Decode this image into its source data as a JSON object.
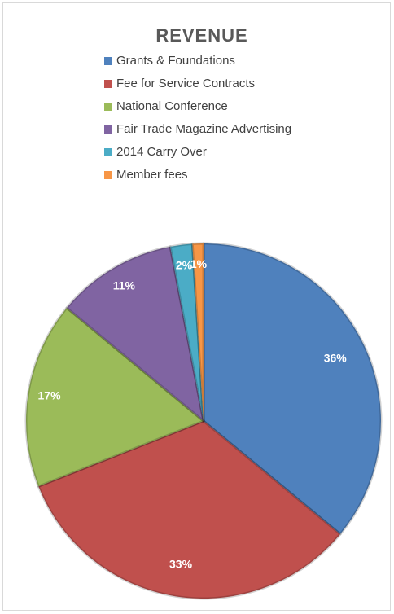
{
  "chart_data": {
    "type": "pie",
    "title": "REVENUE",
    "categories": [
      "Grants & Foundations",
      "Fee for Service Contracts",
      "National Conference",
      "Fair Trade Magazine Advertising",
      "2014 Carry Over",
      "Member fees"
    ],
    "values": [
      36,
      33,
      17,
      11,
      2,
      1
    ],
    "value_labels": [
      "36%",
      "33%",
      "17%",
      "11%",
      "2%",
      "1%"
    ],
    "colors": [
      "#4f81bd",
      "#c0504d",
      "#9bbb59",
      "#8064a2",
      "#4bacc6",
      "#f79646"
    ],
    "legend": "top"
  }
}
